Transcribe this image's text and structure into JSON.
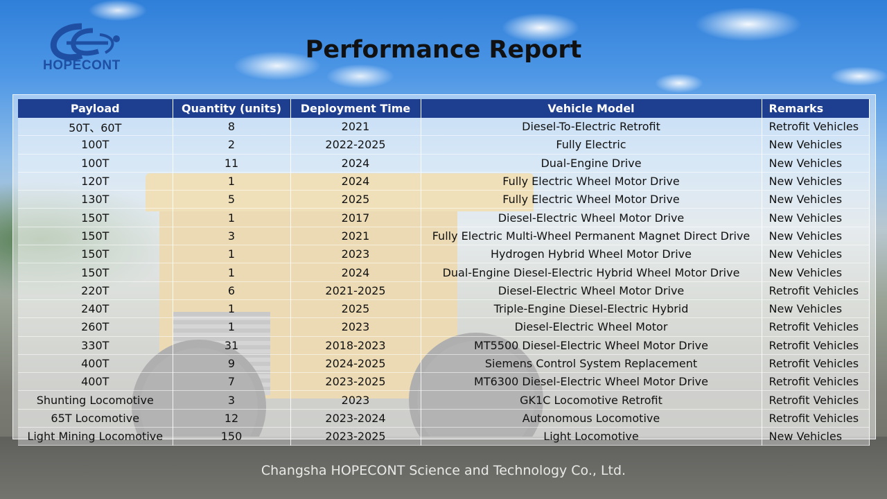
{
  "brand": {
    "name": "HOPECONT",
    "primary_color": "#1f4fa3",
    "logo_icon": "hopecont-logo-icon"
  },
  "title": "Performance Report",
  "table": {
    "header_color": "#1e3e8f",
    "columns": [
      "Payload",
      "Quantity (units)",
      "Deployment Time",
      "Vehicle Model",
      "Remarks"
    ],
    "rows": [
      [
        "50T、60T",
        "8",
        "2021",
        "Diesel-To-Electric Retrofit",
        "Retrofit Vehicles"
      ],
      [
        "100T",
        "2",
        "2022-2025",
        "Fully Electric",
        "New Vehicles"
      ],
      [
        "100T",
        "11",
        "2024",
        "Dual-Engine Drive",
        "New Vehicles"
      ],
      [
        "120T",
        "1",
        "2024",
        "Fully Electric Wheel Motor Drive",
        "New Vehicles"
      ],
      [
        "130T",
        "5",
        "2025",
        "Fully Electric Wheel Motor Drive",
        "New Vehicles"
      ],
      [
        "150T",
        "1",
        "2017",
        "Diesel-Electric Wheel Motor Drive",
        "New Vehicles"
      ],
      [
        "150T",
        "3",
        "2021",
        "Fully Electric Multi-Wheel Permanent Magnet Direct Drive",
        "New Vehicles"
      ],
      [
        "150T",
        "1",
        "2023",
        "Hydrogen Hybrid Wheel Motor Drive",
        "New Vehicles"
      ],
      [
        "150T",
        "1",
        "2024",
        "Dual-Engine Diesel-Electric Hybrid Wheel Motor Drive",
        "New Vehicles"
      ],
      [
        "220T",
        "6",
        "2021-2025",
        "Diesel-Electric Wheel Motor Drive",
        "Retrofit Vehicles"
      ],
      [
        "240T",
        "1",
        "2025",
        "Triple-Engine Diesel-Electric Hybrid",
        "New Vehicles"
      ],
      [
        "260T",
        "1",
        "2023",
        "Diesel-Electric Wheel Motor",
        "Retrofit Vehicles"
      ],
      [
        "330T",
        "31",
        "2018-2023",
        "MT5500 Diesel-Electric Wheel Motor Drive",
        "Retrofit Vehicles"
      ],
      [
        "400T",
        "9",
        "2024-2025",
        "Siemens Control System Replacement",
        "Retrofit Vehicles"
      ],
      [
        "400T",
        "7",
        "2023-2025",
        "MT6300 Diesel-Electric Wheel Motor Drive",
        "Retrofit Vehicles"
      ],
      [
        "Shunting Locomotive",
        "3",
        "2023",
        "GK1C Locomotive Retrofit",
        "Retrofit Vehicles"
      ],
      [
        "65T Locomotive",
        "12",
        "2023-2024",
        "Autonomous Locomotive",
        "Retrofit Vehicles"
      ],
      [
        "Light Mining Locomotive",
        "150",
        "2023-2025",
        "Light Locomotive",
        "New Vehicles"
      ]
    ]
  },
  "footer": "Changsha HOPECONT Science and Technology Co., Ltd."
}
